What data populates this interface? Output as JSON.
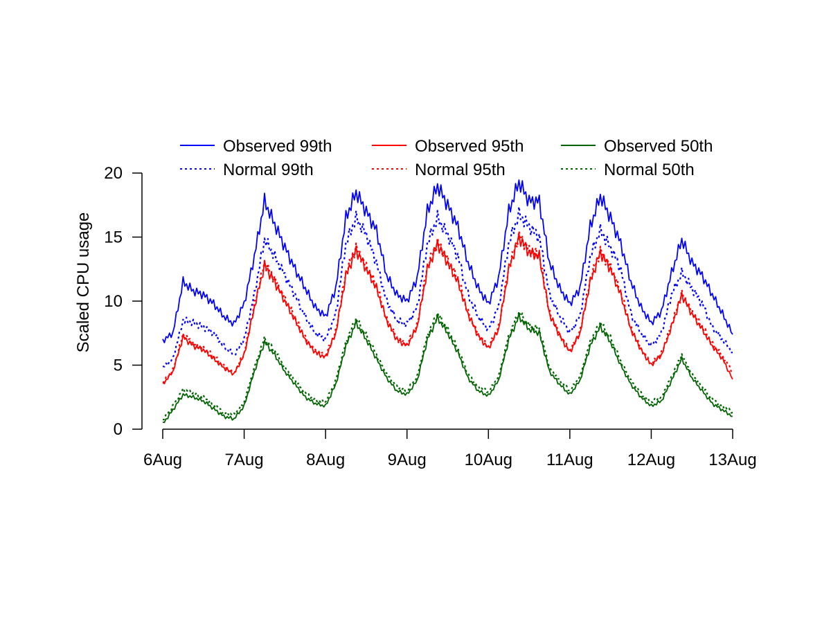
{
  "chart_data": {
    "type": "line",
    "title": "",
    "xlabel": "",
    "ylabel": "Scaled CPU usage",
    "xlim": [
      0,
      7
    ],
    "ylim": [
      0,
      20
    ],
    "x_unit": "days since 6Aug 00:00",
    "x_step_hours": 3,
    "grid": false,
    "legend_position": "top",
    "x_ticks": [
      {
        "value": 0,
        "label": "6Aug"
      },
      {
        "value": 1,
        "label": "7Aug"
      },
      {
        "value": 2,
        "label": "8Aug"
      },
      {
        "value": 3,
        "label": "9Aug"
      },
      {
        "value": 4,
        "label": "10Aug"
      },
      {
        "value": 5,
        "label": "11Aug"
      },
      {
        "value": 6,
        "label": "12Aug"
      },
      {
        "value": 7,
        "label": "13Aug"
      }
    ],
    "y_ticks": [
      {
        "value": 0,
        "label": "0"
      },
      {
        "value": 5,
        "label": "5"
      },
      {
        "value": 10,
        "label": "10"
      },
      {
        "value": 15,
        "label": "15"
      },
      {
        "value": 20,
        "label": "20"
      }
    ],
    "series": [
      {
        "name": "Observed 99th",
        "color": "#0000ff",
        "style": "solid",
        "values": [
          6.9,
          7.5,
          11.5,
          10.8,
          10.5,
          9.8,
          8.8,
          8.2,
          9.8,
          13.5,
          17.8,
          16.0,
          14.2,
          12.5,
          11.0,
          9.5,
          8.8,
          11.0,
          16.5,
          18.5,
          17.0,
          15.5,
          12.0,
          10.5,
          10.0,
          11.8,
          17.0,
          19.0,
          17.5,
          15.8,
          13.0,
          11.0,
          9.8,
          11.8,
          17.0,
          19.3,
          17.8,
          17.8,
          13.0,
          11.0,
          9.8,
          11.0,
          15.8,
          18.2,
          16.5,
          14.5,
          11.5,
          9.5,
          8.3,
          9.2,
          12.2,
          14.8,
          13.0,
          12.0,
          10.5,
          9.0,
          7.4
        ]
      },
      {
        "name": "Observed 95th",
        "color": "#ff0000",
        "style": "solid",
        "values": [
          3.5,
          4.5,
          7.2,
          6.5,
          6.2,
          5.5,
          4.8,
          4.3,
          5.8,
          9.5,
          12.8,
          11.5,
          10.0,
          8.5,
          7.0,
          6.0,
          5.6,
          7.5,
          12.0,
          14.0,
          12.5,
          11.0,
          8.5,
          7.0,
          6.5,
          8.0,
          12.5,
          14.5,
          13.0,
          11.5,
          9.0,
          7.3,
          6.3,
          7.8,
          12.5,
          15.0,
          13.8,
          13.5,
          9.0,
          7.3,
          6.0,
          7.5,
          11.5,
          13.8,
          12.5,
          10.5,
          7.8,
          6.2,
          5.0,
          5.8,
          8.0,
          10.5,
          9.0,
          7.8,
          6.5,
          5.5,
          3.9
        ]
      },
      {
        "name": "Observed 50th",
        "color": "#006400",
        "style": "solid",
        "values": [
          0.4,
          1.5,
          2.7,
          2.5,
          2.2,
          1.6,
          1.0,
          0.8,
          1.8,
          4.5,
          6.8,
          5.8,
          4.5,
          3.5,
          2.5,
          2.0,
          1.8,
          3.5,
          6.5,
          8.3,
          7.0,
          5.5,
          4.0,
          3.0,
          2.7,
          3.8,
          7.0,
          8.7,
          7.5,
          6.0,
          4.0,
          3.0,
          2.6,
          3.8,
          7.0,
          8.8,
          7.8,
          7.5,
          4.5,
          3.5,
          2.7,
          3.8,
          6.5,
          8.0,
          6.8,
          5.0,
          3.5,
          2.5,
          1.8,
          2.2,
          3.8,
          5.5,
          4.0,
          3.0,
          2.0,
          1.5,
          1.0
        ]
      },
      {
        "name": "Normal 99th",
        "color": "#0000ff",
        "style": "dotted",
        "values": [
          4.8,
          5.5,
          8.5,
          8.3,
          8.0,
          7.5,
          6.5,
          5.8,
          7.0,
          10.5,
          14.8,
          13.5,
          12.0,
          10.5,
          8.8,
          7.5,
          7.0,
          9.0,
          14.5,
          16.5,
          15.2,
          13.0,
          10.0,
          8.5,
          8.2,
          9.5,
          14.5,
          16.5,
          15.2,
          13.5,
          10.5,
          8.8,
          7.8,
          9.5,
          14.5,
          16.8,
          15.8,
          15.0,
          10.5,
          8.8,
          7.5,
          8.8,
          13.5,
          15.5,
          14.2,
          12.5,
          9.0,
          7.5,
          6.5,
          7.5,
          10.5,
          12.2,
          11.0,
          9.8,
          8.0,
          7.0,
          6.0
        ]
      },
      {
        "name": "Normal 95th",
        "color": "#ff0000",
        "style": "dotted",
        "values": [
          3.6,
          4.6,
          7.4,
          6.7,
          6.3,
          5.7,
          4.9,
          4.4,
          5.9,
          9.7,
          13.0,
          11.7,
          10.2,
          8.7,
          7.1,
          6.1,
          5.7,
          7.6,
          12.2,
          14.2,
          12.7,
          11.2,
          8.6,
          7.1,
          6.6,
          8.1,
          12.7,
          14.6,
          13.2,
          11.7,
          9.1,
          7.4,
          6.4,
          7.9,
          12.6,
          15.1,
          14.0,
          13.6,
          9.1,
          7.4,
          6.1,
          7.6,
          11.7,
          13.9,
          12.7,
          10.7,
          7.9,
          6.3,
          5.1,
          5.9,
          8.2,
          10.6,
          9.2,
          8.0,
          6.7,
          5.7,
          4.5
        ]
      },
      {
        "name": "Normal 50th",
        "color": "#006400",
        "style": "dotted",
        "values": [
          0.7,
          1.8,
          3.1,
          2.8,
          2.5,
          1.9,
          1.3,
          1.1,
          2.1,
          4.8,
          7.1,
          6.1,
          4.8,
          3.8,
          2.8,
          2.3,
          2.1,
          3.8,
          6.8,
          8.6,
          7.3,
          5.8,
          4.3,
          3.3,
          3.0,
          4.1,
          7.3,
          9.0,
          7.8,
          6.3,
          4.3,
          3.3,
          2.9,
          4.1,
          7.3,
          9.1,
          8.1,
          7.8,
          4.8,
          3.8,
          3.0,
          4.1,
          6.8,
          8.3,
          7.1,
          5.3,
          3.8,
          2.8,
          2.1,
          2.5,
          4.1,
          5.8,
          4.3,
          3.3,
          2.3,
          1.8,
          1.3
        ]
      }
    ]
  }
}
